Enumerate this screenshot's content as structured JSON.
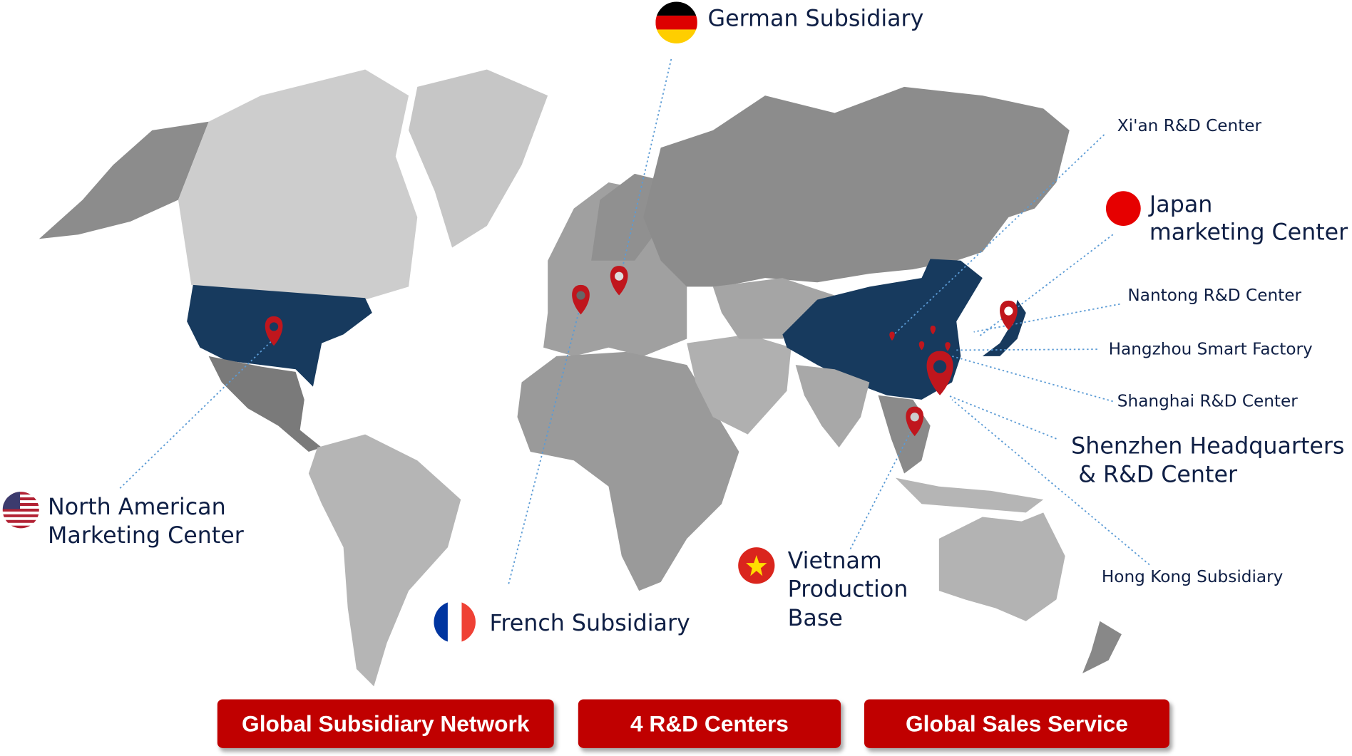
{
  "colors": {
    "highlight_country": "#173a5e",
    "pin": "#c0161d",
    "leader_line": "#5b9bd5",
    "label_text": "#0f1f45",
    "button_bg": "#c00000",
    "button_text": "#ffffff"
  },
  "locations": {
    "germany": {
      "label": "German Subsidiary",
      "flag": "germany-flag-icon"
    },
    "xian": {
      "label": "Xi'an R&D Center"
    },
    "japan": {
      "label_line1": "Japan",
      "label_line2": "marketing Center",
      "flag": "japan-flag-icon"
    },
    "nantong": {
      "label": "Nantong R&D Center"
    },
    "hangzhou": {
      "label": "Hangzhou Smart Factory"
    },
    "shanghai": {
      "label": "Shanghai R&D Center"
    },
    "shenzhen": {
      "label_line1": "Shenzhen Headquarters",
      "label_line2": " & R&D Center"
    },
    "hongkong": {
      "label": "Hong Kong Subsidiary"
    },
    "vietnam": {
      "label_line1": "Vietnam",
      "label_line2": "Production",
      "label_line3": "Base",
      "flag": "vietnam-flag-icon"
    },
    "france": {
      "label": "French Subsidiary",
      "flag": "france-flag-icon"
    },
    "usa": {
      "label_line1": "North American",
      "label_line2": "Marketing Center",
      "flag": "usa-flag-icon"
    }
  },
  "buttons": [
    {
      "label": "Global Subsidiary Network"
    },
    {
      "label": "4 R&D Centers"
    },
    {
      "label": "Global Sales Service"
    }
  ]
}
